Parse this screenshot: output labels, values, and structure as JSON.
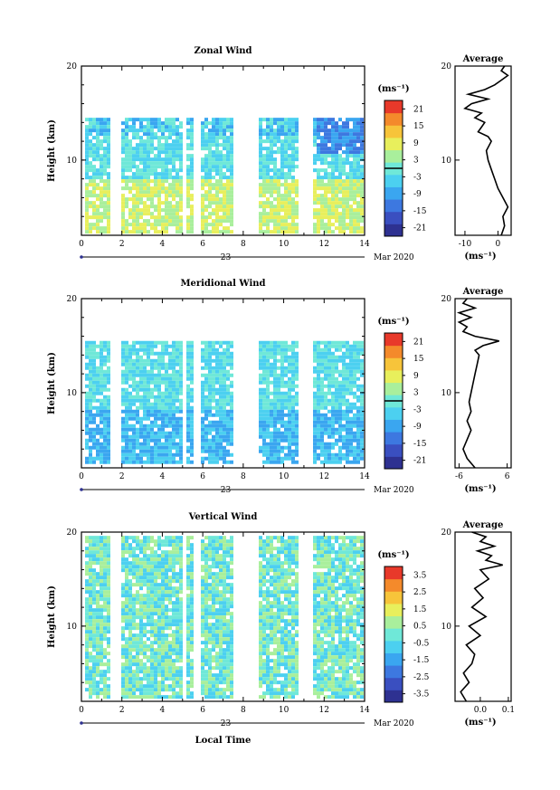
{
  "colors": {
    "colormap": [
      "#2e3191",
      "#3a4fc0",
      "#3d78e0",
      "#3aa6f0",
      "#4cd0f0",
      "#6fe8d8",
      "#a9ef9c",
      "#e8ef5c",
      "#f7c43a",
      "#f48a2b",
      "#e8392a"
    ],
    "contour": "#000000",
    "frame": "#000000"
  },
  "chart_data": [
    {
      "type": "heatmap",
      "title": "Zonal Wind",
      "ylabel": "Height (km)",
      "xlabel": "",
      "x_ticks": [
        "0",
        "2",
        "4",
        "6",
        "8",
        "10",
        "12",
        "14"
      ],
      "y_ticks": [
        "20",
        "10"
      ],
      "xlim": [
        0,
        14
      ],
      "ylim": [
        2,
        20
      ],
      "date_label": "Mar 2020",
      "day_label": "23",
      "colorbar": {
        "unit": "(ms⁻¹)",
        "ticks": [
          "21",
          "15",
          "9",
          "3",
          "-3",
          "-9",
          "-15",
          "-21"
        ],
        "range": [
          -24,
          24
        ],
        "zero_line": true
      },
      "data_gaps_hours": [
        [
          1.3,
          1.9
        ],
        [
          4.9,
          5.1
        ],
        [
          5.5,
          5.9
        ],
        [
          7.5,
          8.6
        ],
        [
          10.6,
          11.3
        ]
      ],
      "data_top_km": 14.5,
      "profile": {
        "title": "Average",
        "x_ticks": [
          "-10",
          "0"
        ],
        "xlim": [
          -13,
          4
        ],
        "xlabel": "(ms⁻¹)",
        "y_ticks": [
          "20",
          "10"
        ],
        "heights_km": [
          2,
          3,
          4,
          5,
          6,
          7,
          8,
          9,
          10,
          11,
          12,
          12.5,
          13,
          13.5,
          14,
          14.5,
          15,
          15.5,
          16,
          16.5,
          17,
          17.5,
          18,
          18.5,
          19,
          19.5,
          20
        ],
        "values": [
          1,
          2,
          1.5,
          3,
          1.5,
          0,
          -1,
          -2,
          -3,
          -3.5,
          -2,
          -3,
          -6,
          -5,
          -4,
          -7,
          -5,
          -10,
          -8,
          -3,
          -9,
          -4,
          -1,
          1,
          3,
          1,
          2
        ]
      }
    },
    {
      "type": "heatmap",
      "title": "Meridional Wind",
      "ylabel": "Height (km)",
      "xlabel": "",
      "x_ticks": [
        "0",
        "2",
        "4",
        "6",
        "8",
        "10",
        "12",
        "14"
      ],
      "y_ticks": [
        "20",
        "10"
      ],
      "xlim": [
        0,
        14
      ],
      "ylim": [
        2,
        20
      ],
      "date_label": "Mar 2020",
      "day_label": "23",
      "colorbar": {
        "unit": "(ms⁻¹)",
        "ticks": [
          "21",
          "15",
          "9",
          "3",
          "-3",
          "-9",
          "-15",
          "-21"
        ],
        "range": [
          -24,
          24
        ],
        "zero_line": true
      },
      "data_gaps_hours": [
        [
          1.3,
          1.9
        ],
        [
          4.9,
          5.1
        ],
        [
          5.5,
          5.9
        ],
        [
          7.5,
          8.6
        ],
        [
          10.6,
          11.3
        ]
      ],
      "data_top_km": 15.5,
      "profile": {
        "title": "Average",
        "x_ticks": [
          "-6",
          "6"
        ],
        "xlim": [
          -7,
          7
        ],
        "xlabel": "(ms⁻¹)",
        "y_ticks": [
          "20",
          "10"
        ],
        "heights_km": [
          2,
          3,
          4,
          5,
          6,
          7,
          8,
          9,
          10,
          11,
          12,
          13,
          14,
          14.5,
          15,
          15.5,
          16,
          16.5,
          17,
          17.5,
          18,
          18.5,
          19,
          19.5,
          20
        ],
        "values": [
          -2,
          -4,
          -5,
          -4,
          -3,
          -4,
          -3,
          -3.5,
          -3,
          -2.5,
          -2,
          -1.5,
          -1,
          -2,
          0,
          4,
          -2,
          -5,
          -4,
          -6,
          -3,
          -6,
          -2,
          -5,
          -4
        ]
      }
    },
    {
      "type": "heatmap",
      "title": "Vertical Wind",
      "ylabel": "Height (km)",
      "xlabel": "Local Time",
      "x_ticks": [
        "0",
        "2",
        "4",
        "6",
        "8",
        "10",
        "12",
        "14"
      ],
      "y_ticks": [
        "20",
        "10"
      ],
      "xlim": [
        0,
        14
      ],
      "ylim": [
        2,
        20
      ],
      "date_label": "Mar 2020",
      "day_label": "23",
      "colorbar": {
        "unit": "(ms⁻¹)",
        "ticks": [
          "3.5",
          "2.5",
          "1.5",
          "0.5",
          "-0.5",
          "-1.5",
          "-2.5",
          "-3.5"
        ],
        "range": [
          -4,
          4
        ],
        "zero_line": false
      },
      "data_gaps_hours": [
        [
          1.3,
          1.9
        ],
        [
          4.9,
          5.1
        ],
        [
          5.5,
          5.9
        ],
        [
          7.5,
          8.6
        ],
        [
          10.6,
          11.3
        ]
      ],
      "data_top_km": 19.6,
      "profile": {
        "title": "Average",
        "x_ticks": [
          "0.0",
          "0.1"
        ],
        "xlim": [
          -0.09,
          0.11
        ],
        "xlabel": "(ms⁻¹)",
        "y_ticks": [
          "20",
          "10"
        ],
        "heights_km": [
          2,
          3,
          4,
          5,
          6,
          7,
          8,
          9,
          10,
          11,
          12,
          13,
          14,
          15,
          16,
          16.5,
          17,
          17.5,
          18,
          18.5,
          19,
          19.5,
          20
        ],
        "values": [
          -0.05,
          -0.07,
          -0.04,
          -0.06,
          -0.03,
          -0.02,
          -0.05,
          0.0,
          -0.04,
          0.02,
          -0.03,
          0.01,
          -0.02,
          0.03,
          0.0,
          0.08,
          0.02,
          0.04,
          -0.01,
          0.05,
          0.0,
          0.02,
          -0.03
        ]
      }
    }
  ]
}
